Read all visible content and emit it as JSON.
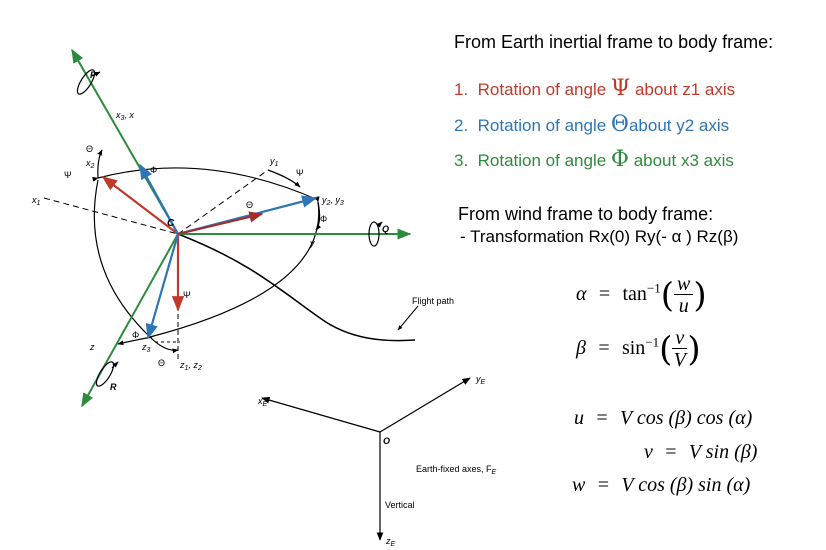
{
  "diagram": {
    "labels": {
      "P": "P",
      "x3x": "x",
      "x3x_sub": "3",
      "x3x_tail": ", x",
      "theta_top": "Θ",
      "x2": "x",
      "x2_sub": "2",
      "psi_left": "Ψ",
      "phi_top": "Φ",
      "y1": "y",
      "y1_sub": "1",
      "psi_right": "Ψ",
      "x1": "x",
      "x1_sub": "1",
      "C": "C",
      "theta_mid": "Θ",
      "y2y3": "y",
      "y2y3_sub": "2",
      "y2y3_tail": ", y",
      "y2y3_sub2": "3",
      "phi_right": "Φ",
      "y": "y",
      "Q": "Q",
      "psi_down": "Ψ",
      "flight_path": "Flight path",
      "z": "z",
      "phi_bottom": "Φ",
      "z3": "z",
      "z3_sub": "3",
      "theta_bottom": "Θ",
      "z1z2": "z",
      "z1z2_sub": "1",
      "z1z2_tail": ", z",
      "z1z2_sub2": "2",
      "R": "R",
      "xE": "x",
      "xE_sub": "E",
      "yE": "y",
      "yE_sub": "E",
      "O": "O",
      "earth_axes": "Earth-fixed axes, F",
      "earth_axes_sub": "E",
      "vertical": "Vertical",
      "zE": "z",
      "zE_sub": "E"
    }
  },
  "text": {
    "heading1": "From Earth inertial frame to body frame:",
    "steps": [
      {
        "num": "1.",
        "pre": "Rotation of angle ",
        "sym": "Ψ",
        "post": "about z1 axis",
        "color": "#c0392b"
      },
      {
        "num": "2.",
        "pre": "Rotation of angle ",
        "sym": "Θ",
        "post": "about y2 axis",
        "color": "#2e75b6"
      },
      {
        "num": "3.",
        "pre": "Rotation of angle ",
        "sym": "Φ",
        "post": "about x3 axis",
        "color": "#2e8b3d"
      }
    ],
    "heading2": "From wind frame to body frame:",
    "transform": "-  Transformation Rx(0) Ry(- α ) Rz(β)"
  },
  "equations": {
    "alpha": {
      "lhs": "α",
      "eq": "=",
      "fn": "tan",
      "sup": "−1",
      "num": "w",
      "den": "u"
    },
    "beta": {
      "lhs": "β",
      "eq": "=",
      "fn": "sin",
      "sup": "−1",
      "num": "v",
      "den": "V"
    },
    "u": {
      "lhs": "u",
      "eq": "=",
      "rhs": "V cos (β) cos (α)"
    },
    "v": {
      "lhs": "v",
      "eq": "=",
      "rhs": "V sin (β)"
    },
    "w": {
      "lhs": "w",
      "eq": "=",
      "rhs": "V cos (β) sin (α)"
    }
  },
  "colors": {
    "red": "#c0392b",
    "blue": "#2e75b6",
    "green": "#2e8b3d",
    "dark_red": "#a52a2a"
  }
}
